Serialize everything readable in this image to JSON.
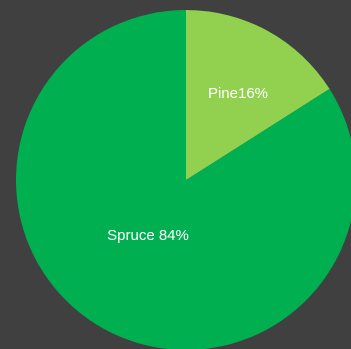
{
  "chart_data": {
    "type": "pie",
    "categories": [
      "Pine",
      "Spruce"
    ],
    "values": [
      16,
      84
    ],
    "labels": [
      "Pine16%",
      "Spruce 84%"
    ],
    "colors": [
      "#92d050",
      "#00b050"
    ],
    "background": "#404040",
    "start_angle_deg": 0,
    "direction": "clockwise"
  }
}
